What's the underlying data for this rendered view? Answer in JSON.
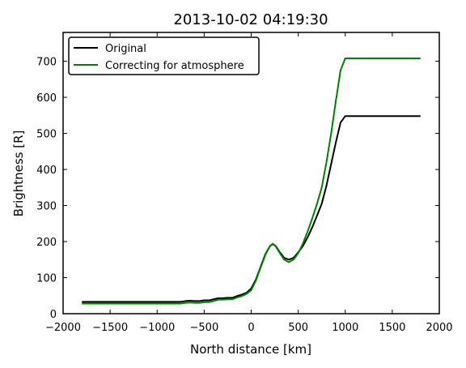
{
  "chart_data": {
    "type": "line",
    "title": "2013-10-02 04:19:30",
    "xlabel": "North distance [km]",
    "ylabel": "Brightness [R]",
    "xlim": [
      -2000,
      2000
    ],
    "ylim": [
      0,
      780
    ],
    "xticks": [
      -2000,
      -1500,
      -1000,
      -500,
      0,
      500,
      1000,
      1500,
      2000
    ],
    "xtick_labels": [
      "−2000",
      "−1500",
      "−1000",
      "−500",
      "0",
      "500",
      "1000",
      "1500",
      "2000"
    ],
    "yticks": [
      0,
      100,
      200,
      300,
      400,
      500,
      600,
      700
    ],
    "ytick_labels": [
      "0",
      "100",
      "200",
      "300",
      "400",
      "500",
      "600",
      "700"
    ],
    "grid": false,
    "legend_position": "top-left",
    "series": [
      {
        "name": "Original",
        "color": "#000000",
        "points": [
          [
            -1800,
            33
          ],
          [
            -1500,
            33
          ],
          [
            -1000,
            33
          ],
          [
            -750,
            33
          ],
          [
            -700,
            35
          ],
          [
            -650,
            36
          ],
          [
            -600,
            35
          ],
          [
            -550,
            35
          ],
          [
            -500,
            37
          ],
          [
            -450,
            37
          ],
          [
            -400,
            40
          ],
          [
            -350,
            43
          ],
          [
            -300,
            43
          ],
          [
            -250,
            44
          ],
          [
            -200,
            44
          ],
          [
            -150,
            49
          ],
          [
            -100,
            53
          ],
          [
            -50,
            58
          ],
          [
            0,
            70
          ],
          [
            50,
            95
          ],
          [
            100,
            130
          ],
          [
            150,
            165
          ],
          [
            200,
            188
          ],
          [
            230,
            193
          ],
          [
            260,
            188
          ],
          [
            300,
            172
          ],
          [
            350,
            155
          ],
          [
            400,
            150
          ],
          [
            450,
            155
          ],
          [
            500,
            170
          ],
          [
            550,
            188
          ],
          [
            600,
            212
          ],
          [
            650,
            240
          ],
          [
            700,
            272
          ],
          [
            750,
            305
          ],
          [
            800,
            355
          ],
          [
            850,
            415
          ],
          [
            900,
            475
          ],
          [
            950,
            530
          ],
          [
            1000,
            548
          ],
          [
            1100,
            548
          ],
          [
            1500,
            548
          ],
          [
            1800,
            548
          ]
        ]
      },
      {
        "name": "Correcting for atmosphere",
        "color": "#008000",
        "points": [
          [
            -1800,
            28
          ],
          [
            -1500,
            28
          ],
          [
            -1000,
            28
          ],
          [
            -750,
            28
          ],
          [
            -700,
            30
          ],
          [
            -650,
            31
          ],
          [
            -600,
            30
          ],
          [
            -550,
            30
          ],
          [
            -500,
            32
          ],
          [
            -450,
            32
          ],
          [
            -400,
            35
          ],
          [
            -350,
            39
          ],
          [
            -300,
            39
          ],
          [
            -250,
            40
          ],
          [
            -200,
            40
          ],
          [
            -150,
            45
          ],
          [
            -100,
            49
          ],
          [
            -50,
            55
          ],
          [
            0,
            65
          ],
          [
            50,
            92
          ],
          [
            100,
            128
          ],
          [
            150,
            163
          ],
          [
            200,
            188
          ],
          [
            230,
            194
          ],
          [
            260,
            187
          ],
          [
            300,
            170
          ],
          [
            350,
            150
          ],
          [
            400,
            143
          ],
          [
            450,
            150
          ],
          [
            500,
            168
          ],
          [
            550,
            195
          ],
          [
            600,
            228
          ],
          [
            650,
            265
          ],
          [
            700,
            305
          ],
          [
            750,
            350
          ],
          [
            800,
            420
          ],
          [
            850,
            500
          ],
          [
            900,
            590
          ],
          [
            950,
            675
          ],
          [
            1000,
            708
          ],
          [
            1100,
            708
          ],
          [
            1500,
            708
          ],
          [
            1800,
            708
          ]
        ]
      }
    ]
  }
}
